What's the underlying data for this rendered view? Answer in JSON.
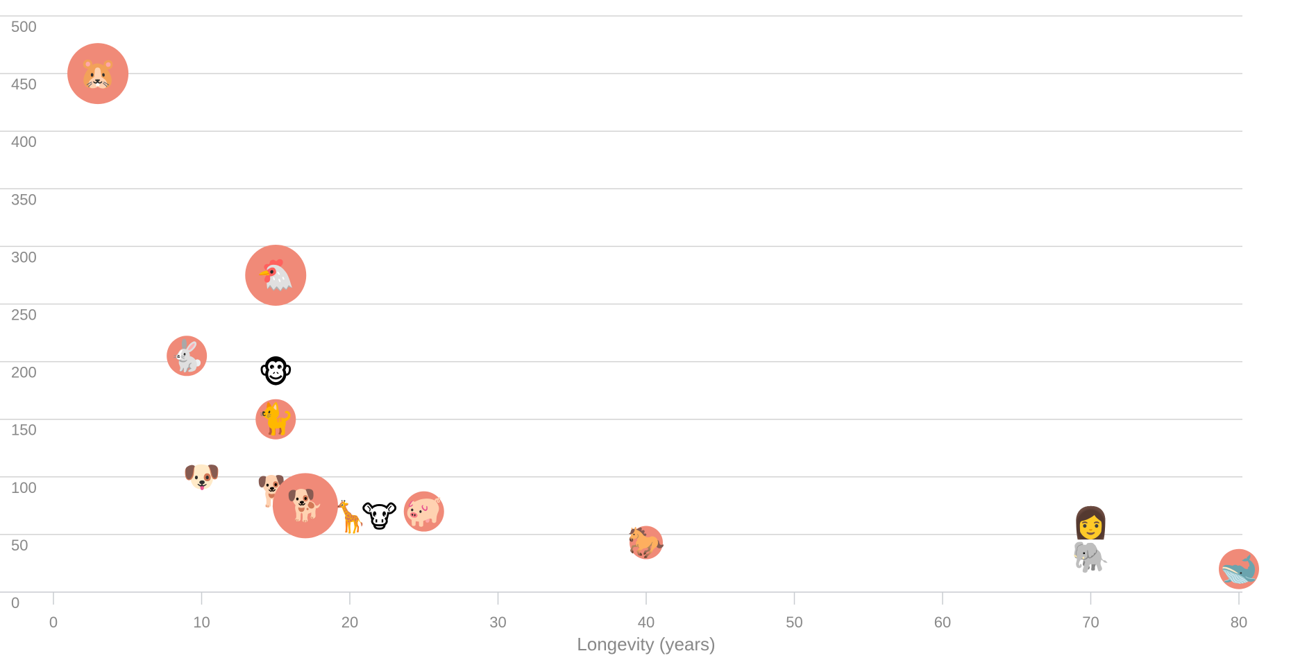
{
  "chart_data": {
    "type": "scatter",
    "xlabel": "Longevity (years)",
    "ylabel": "",
    "xlim": [
      0,
      80
    ],
    "ylim": [
      0,
      500
    ],
    "x_ticks": [
      "0",
      "10",
      "20",
      "30",
      "40",
      "50",
      "60",
      "70",
      "80"
    ],
    "y_ticks": [
      "0",
      "50",
      "100",
      "150",
      "200",
      "250",
      "300",
      "350",
      "400",
      "450",
      "500"
    ],
    "grid": true,
    "bubble_color": "#f08a78",
    "points": [
      {
        "icon": "hamster-icon",
        "glyph": "🐹",
        "x": 3,
        "y": 450,
        "bubble": "large"
      },
      {
        "icon": "chicken-icon",
        "glyph": "🐔",
        "x": 15,
        "y": 275,
        "bubble": "large"
      },
      {
        "icon": "rabbit-icon",
        "glyph": "🐇",
        "x": 9,
        "y": 205,
        "bubble": "medium"
      },
      {
        "icon": "monkey-icon",
        "glyph": "🐵",
        "x": 15,
        "y": 190,
        "bubble": "none"
      },
      {
        "icon": "cat-icon",
        "glyph": "🐈",
        "x": 15,
        "y": 150,
        "bubble": "medium"
      },
      {
        "icon": "pug-icon",
        "glyph": "🐶",
        "x": 10,
        "y": 100,
        "bubble": "none"
      },
      {
        "icon": "corgi-icon",
        "glyph": "🐕",
        "x": 15,
        "y": 87,
        "bubble": "none"
      },
      {
        "icon": "dog-icon",
        "glyph": "🐕",
        "x": 17,
        "y": 75,
        "bubble": "xlarge"
      },
      {
        "icon": "giraffe-icon",
        "glyph": "🦒",
        "x": 20,
        "y": 65,
        "bubble": "none"
      },
      {
        "icon": "cow-icon",
        "glyph": "🐮",
        "x": 22,
        "y": 65,
        "bubble": "none"
      },
      {
        "icon": "pig-icon",
        "glyph": "🐖",
        "x": 25,
        "y": 70,
        "bubble": "medium"
      },
      {
        "icon": "horse-icon",
        "glyph": "🐎",
        "x": 40,
        "y": 43,
        "bubble": "small"
      },
      {
        "icon": "woman-icon",
        "glyph": "👩",
        "x": 70,
        "y": 60,
        "bubble": "none"
      },
      {
        "icon": "elephant-icon",
        "glyph": "🐘",
        "x": 70,
        "y": 30,
        "bubble": "none"
      },
      {
        "icon": "whale-icon",
        "glyph": "🐋",
        "x": 80,
        "y": 20,
        "bubble": "medium"
      }
    ]
  }
}
